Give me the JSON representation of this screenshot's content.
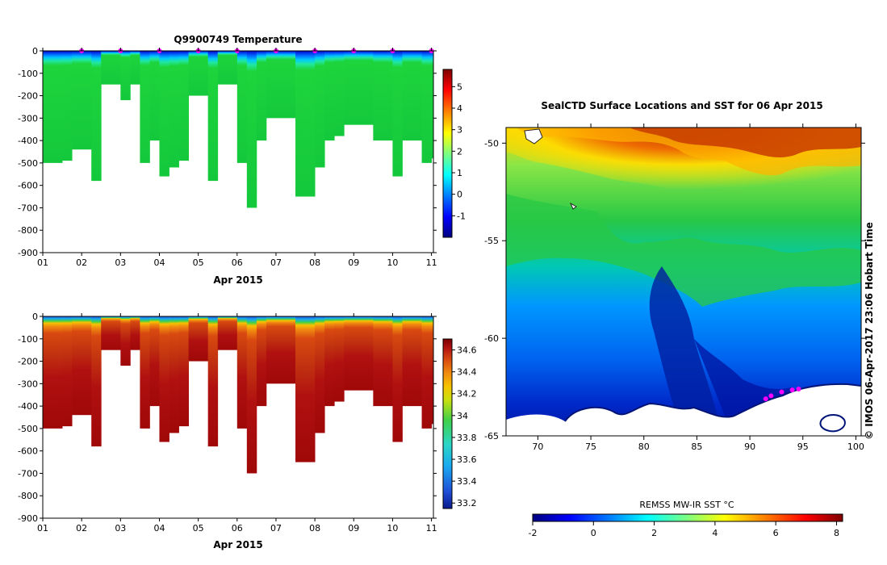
{
  "colors": {
    "jet": [
      "#00007f",
      "#0000ff",
      "#007fff",
      "#00ffff",
      "#7fff7f",
      "#ffff00",
      "#ff7f00",
      "#ff0000",
      "#7f0000"
    ],
    "sal": [
      "#0a1a8c",
      "#1f4fd8",
      "#19a9f0",
      "#2dd7c6",
      "#3fd04a",
      "#c8e010",
      "#f6c300",
      "#f08a10",
      "#d84a10",
      "#b01010",
      "#7a0000"
    ],
    "marker": "#ff00ff"
  },
  "chart_data": [
    {
      "id": "temperature",
      "type": "heatmap",
      "title": "Q9900749  Temperature",
      "xlabel": "Apr 2015",
      "ylabel": "",
      "xlim": [
        1,
        11.05
      ],
      "ylim": [
        -900,
        0
      ],
      "xticks": [
        "01",
        "02",
        "03",
        "04",
        "05",
        "06",
        "07",
        "08",
        "09",
        "10",
        "11"
      ],
      "yticks": [
        "0",
        "-100",
        "-200",
        "-300",
        "-400",
        "-500",
        "-600",
        "-700",
        "-800",
        "-900"
      ],
      "colorbar": {
        "range": [
          -2,
          5.8
        ],
        "ticks": [
          "5",
          "4",
          "3",
          "2",
          "1",
          "0",
          "-1"
        ],
        "tick_values": [
          5,
          4,
          3,
          2,
          1,
          0,
          -1
        ]
      },
      "profile_dates": [
        1.0,
        1.5,
        1.75,
        2.25,
        2.5,
        2.75,
        3.0,
        3.25,
        3.5,
        3.75,
        4.0,
        4.25,
        4.5,
        4.75,
        5.0,
        5.25,
        5.5,
        5.75,
        6.0,
        6.25,
        6.5,
        6.75,
        7.0,
        7.5,
        7.75,
        8.0,
        8.25,
        8.5,
        8.75,
        9.0,
        9.5,
        9.75,
        10.0,
        10.25,
        10.5,
        10.75,
        11.0,
        11.05
      ],
      "profile_depths": [
        500,
        490,
        440,
        580,
        150,
        150,
        220,
        150,
        500,
        400,
        560,
        520,
        490,
        200,
        200,
        580,
        150,
        150,
        500,
        700,
        400,
        300,
        300,
        650,
        650,
        520,
        400,
        380,
        330,
        330,
        400,
        400,
        560,
        400,
        400,
        500,
        480
      ],
      "profile_palette": "temperature",
      "surface_markers": [
        2.0,
        3.0,
        4.0,
        5.0,
        6.0,
        7.0,
        8.0,
        9.0,
        10.0,
        11.0
      ]
    },
    {
      "id": "salinity",
      "type": "heatmap",
      "title": "",
      "xlabel": "Apr 2015",
      "ylabel": "",
      "xlim": [
        1,
        11.05
      ],
      "ylim": [
        -900,
        0
      ],
      "xticks": [
        "01",
        "02",
        "03",
        "04",
        "05",
        "06",
        "07",
        "08",
        "09",
        "10",
        "11"
      ],
      "yticks": [
        "0",
        "-100",
        "-200",
        "-300",
        "-400",
        "-500",
        "-600",
        "-700",
        "-800",
        "-900"
      ],
      "colorbar": {
        "range": [
          33.15,
          34.7
        ],
        "ticks": [
          "34.6",
          "34.4",
          "34.2",
          "34",
          "33.8",
          "33.6",
          "33.4",
          "33.2"
        ],
        "tick_values": [
          34.6,
          34.4,
          34.2,
          34.0,
          33.8,
          33.6,
          33.4,
          33.2
        ]
      },
      "profile_dates": [
        1.0,
        1.5,
        1.75,
        2.25,
        2.5,
        2.75,
        3.0,
        3.25,
        3.5,
        3.75,
        4.0,
        4.25,
        4.5,
        4.75,
        5.0,
        5.25,
        5.5,
        5.75,
        6.0,
        6.25,
        6.5,
        6.75,
        7.0,
        7.5,
        7.75,
        8.0,
        8.25,
        8.5,
        8.75,
        9.0,
        9.5,
        9.75,
        10.0,
        10.25,
        10.5,
        10.75,
        11.0,
        11.05
      ],
      "profile_depths": [
        500,
        490,
        440,
        580,
        150,
        150,
        220,
        150,
        500,
        400,
        560,
        520,
        490,
        200,
        200,
        580,
        150,
        150,
        500,
        700,
        400,
        300,
        300,
        650,
        650,
        520,
        400,
        380,
        330,
        330,
        400,
        400,
        560,
        400,
        400,
        500,
        480
      ],
      "profile_palette": "salinity"
    },
    {
      "id": "sst_map",
      "type": "heatmap",
      "title": "SealCTD Surface Locations and SST for 06 Apr 2015",
      "xlabel": "",
      "xlim": [
        67,
        100.5
      ],
      "ylim": [
        -65,
        -49.2
      ],
      "xticks": [
        "70",
        "75",
        "80",
        "85",
        "90",
        "95",
        "100"
      ],
      "xtick_values": [
        70,
        75,
        80,
        85,
        90,
        95,
        100
      ],
      "yticks": [
        "-50",
        "-55",
        "-60",
        "-65"
      ],
      "ytick_values": [
        -50,
        -55,
        -60,
        -65
      ],
      "colorbar": {
        "label": "REMSS MW-IR SST °C",
        "range": [
          -2,
          8.2
        ],
        "ticks": [
          "-2",
          "0",
          "2",
          "4",
          "6",
          "8"
        ],
        "tick_values": [
          -2,
          0,
          2,
          4,
          6,
          8
        ]
      },
      "track_lon": [
        91.5,
        92.0,
        93.0,
        94.0,
        94.6
      ],
      "track_lat": [
        -63.1,
        -62.95,
        -62.75,
        -62.65,
        -62.6
      ],
      "credit": "©  IMOS 06-Apr-2017 23:06 Hobart Time"
    }
  ]
}
